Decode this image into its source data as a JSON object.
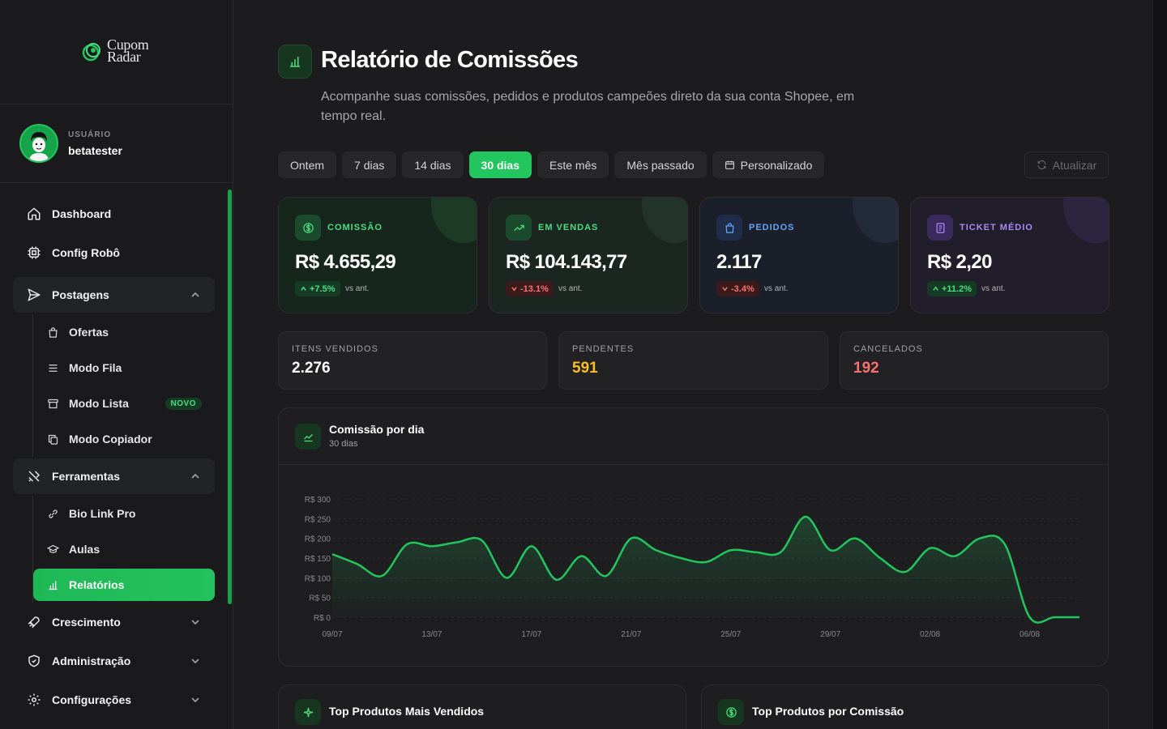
{
  "brand": {
    "line1": "Cupom",
    "line2": "Radar"
  },
  "user": {
    "caption": "USUÁRIO",
    "name": "betatester"
  },
  "nav": {
    "dashboard": "Dashboard",
    "config_robo": "Config Robô",
    "postagens": "Postagens",
    "postagens_items": [
      "Ofertas",
      "Modo Fila",
      "Modo Lista",
      "Modo Copiador"
    ],
    "novo_badge": "NOVO",
    "ferramentas": "Ferramentas",
    "ferramentas_items": [
      "Bio Link Pro",
      "Aulas",
      "Relatórios"
    ],
    "crescimento": "Crescimento",
    "administracao": "Administração",
    "configuracoes": "Configurações"
  },
  "header": {
    "title": "Relatório de Comissões",
    "subtitle": "Acompanhe suas comissões, pedidos e produtos campeões direto da sua conta Shopee, em tempo real."
  },
  "filters": [
    "Ontem",
    "7 dias",
    "14 dias",
    "30 dias",
    "Este mês",
    "Mês passado",
    "Personalizado"
  ],
  "active_filter": "30 dias",
  "refresh_label": "Atualizar",
  "kpis": [
    {
      "label": "COMISSÃO",
      "value": "R$ 4.655,29",
      "delta": "+7.5%",
      "trend": "up",
      "vs": "vs ant.",
      "color": "#4ade80",
      "icon": "dollar-icon"
    },
    {
      "label": "EM VENDAS",
      "value": "R$ 104.143,77",
      "delta": "-13.1%",
      "trend": "down",
      "vs": "vs ant.",
      "color": "#4ade80",
      "icon": "trending-up-icon"
    },
    {
      "label": "PEDIDOS",
      "value": "2.117",
      "delta": "-3.4%",
      "trend": "down",
      "vs": "vs ant.",
      "color": "#60a5fa",
      "icon": "bag-icon"
    },
    {
      "label": "TICKET MÉDIO",
      "value": "R$ 2,20",
      "delta": "+11.2%",
      "trend": "up",
      "vs": "vs ant.",
      "color": "#a78bfa",
      "icon": "receipt-icon"
    }
  ],
  "mini_stats": [
    {
      "label": "ITENS VENDIDOS",
      "value": "2.276",
      "color": "#ffffff"
    },
    {
      "label": "PENDENTES",
      "value": "591",
      "color": "#fbbf24"
    },
    {
      "label": "CANCELADOS",
      "value": "192",
      "color": "#f87171"
    }
  ],
  "chart": {
    "title": "Comissão por dia",
    "subtitle": "30 dias"
  },
  "chart_data": {
    "type": "area",
    "title": "Comissão por dia",
    "x": [
      "09/07",
      "10/07",
      "11/07",
      "12/07",
      "13/07",
      "14/07",
      "15/07",
      "16/07",
      "17/07",
      "18/07",
      "19/07",
      "20/07",
      "21/07",
      "22/07",
      "23/07",
      "24/07",
      "25/07",
      "26/07",
      "27/07",
      "28/07",
      "29/07",
      "30/07",
      "31/07",
      "01/08",
      "02/08",
      "03/08",
      "04/08",
      "05/08",
      "06/08",
      "07/08",
      "08/08"
    ],
    "series": [
      {
        "values": [
          160,
          135,
          105,
          185,
          180,
          190,
          195,
          100,
          180,
          95,
          155,
          105,
          200,
          170,
          150,
          140,
          170,
          165,
          165,
          255,
          170,
          200,
          150,
          115,
          175,
          155,
          200,
          185,
          0,
          0,
          0
        ]
      }
    ],
    "xticks": [
      "09/07",
      "13/07",
      "17/07",
      "21/07",
      "25/07",
      "29/07",
      "02/08",
      "06/08"
    ],
    "yticks": [
      "R$ 0",
      "R$ 50",
      "R$ 100",
      "R$ 150",
      "R$ 200",
      "R$ 250",
      "R$ 300"
    ],
    "ylim": [
      0,
      300
    ],
    "color": "#22c55e"
  },
  "bottom": {
    "left_title": "Top Produtos Mais Vendidos",
    "right_title": "Top Produtos por Comissão"
  }
}
